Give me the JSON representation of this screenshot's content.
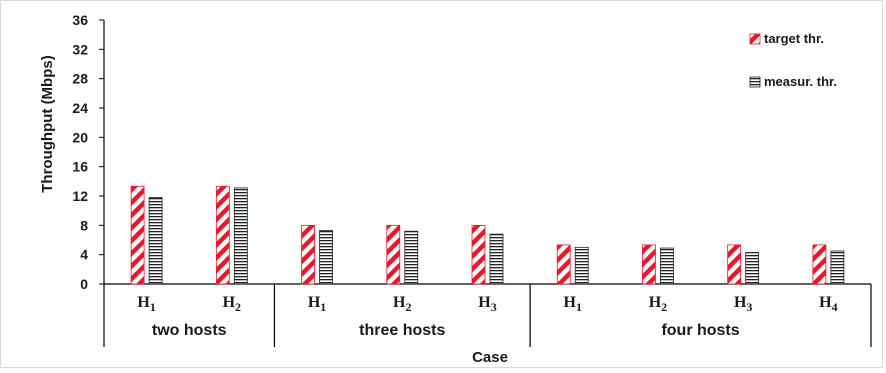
{
  "chart_data": {
    "type": "bar",
    "xlabel": "Case",
    "ylabel": "Throughput (Mbps)",
    "ylim": [
      0,
      36
    ],
    "yticks": [
      "0",
      "4",
      "8",
      "12",
      "16",
      "20",
      "24",
      "28",
      "32",
      "36"
    ],
    "grid": false,
    "legend_position": "top-right",
    "categories": [
      {
        "base": "H",
        "sub": "1",
        "group": "two hosts"
      },
      {
        "base": "H",
        "sub": "2",
        "group": "two hosts"
      },
      {
        "base": "H",
        "sub": "1",
        "group": "three hosts"
      },
      {
        "base": "H",
        "sub": "2",
        "group": "three hosts"
      },
      {
        "base": "H",
        "sub": "3",
        "group": "three hosts"
      },
      {
        "base": "H",
        "sub": "1",
        "group": "four hosts"
      },
      {
        "base": "H",
        "sub": "2",
        "group": "four hosts"
      },
      {
        "base": "H",
        "sub": "3",
        "group": "four hosts"
      },
      {
        "base": "H",
        "sub": "4",
        "group": "four hosts"
      }
    ],
    "groups": [
      {
        "label": "two hosts",
        "count": 2
      },
      {
        "label": "three hosts",
        "count": 3
      },
      {
        "label": "four hosts",
        "count": 4
      }
    ],
    "series": [
      {
        "name": "target thr.",
        "pattern": "diagonal",
        "color": "#e8192c",
        "values": [
          13.33,
          13.33,
          8.0,
          8.0,
          8.0,
          5.33,
          5.33,
          5.33,
          5.33
        ]
      },
      {
        "name": "measur. thr.",
        "pattern": "horizontal",
        "color": "#222222",
        "values": [
          11.8,
          13.1,
          7.3,
          7.2,
          6.8,
          5.0,
          4.9,
          4.3,
          4.5
        ]
      }
    ]
  }
}
